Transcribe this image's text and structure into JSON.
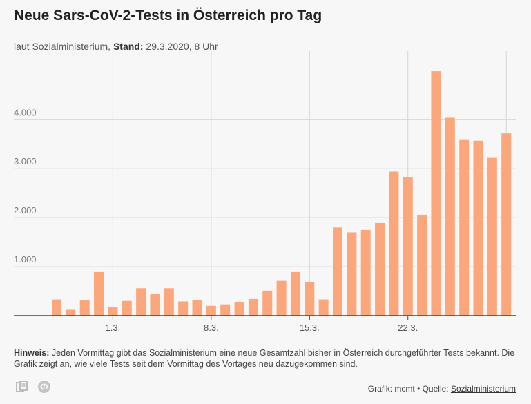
{
  "header": {
    "title": "Neue Sars-CoV-2-Tests in Österreich pro Tag",
    "subtitle_source": "laut Sozialministerium,",
    "subtitle_stand_label": "Stand:",
    "subtitle_stand_value": "29.3.2020, 8 Uhr"
  },
  "note": {
    "label": "Hinweis:",
    "text": "Jeden Vormittag gibt das Sozialministerium eine neue Gesamtzahl bisher in Österreich durchgeführter Tests bekannt. Die Grafik zeigt an, wie viele Tests seit dem Vormittag des Vortages neu dazugekommen sind."
  },
  "footer": {
    "credit": "Grafik: mcmt • Quelle:",
    "source_link": "Sozialministerium"
  },
  "icons": [
    "documents-icon",
    "embed-code-icon"
  ],
  "colors": {
    "bar": "#fba77b",
    "grid": "#d4d4d4",
    "axis": "#444444"
  },
  "chart_data": {
    "type": "bar",
    "title": "Neue Sars-CoV-2-Tests in Österreich pro Tag",
    "x_ticks": [
      "1.3.",
      "8.3.",
      "15.3.",
      "22.3."
    ],
    "x_tick_index": [
      4,
      11,
      18,
      25
    ],
    "y_ticks": [
      "1.000",
      "2.000",
      "3.000",
      "4.000"
    ],
    "y_tick_values": [
      1000,
      2000,
      3000,
      4000
    ],
    "ylim": [
      0,
      5400
    ],
    "grid": true,
    "values": [
      330,
      120,
      310,
      890,
      170,
      300,
      560,
      450,
      560,
      290,
      310,
      200,
      230,
      280,
      340,
      510,
      710,
      890,
      690,
      330,
      1800,
      1700,
      1750,
      1890,
      2940,
      2830,
      2060,
      4990,
      4040,
      3600,
      3570,
      3220,
      3720
    ]
  }
}
